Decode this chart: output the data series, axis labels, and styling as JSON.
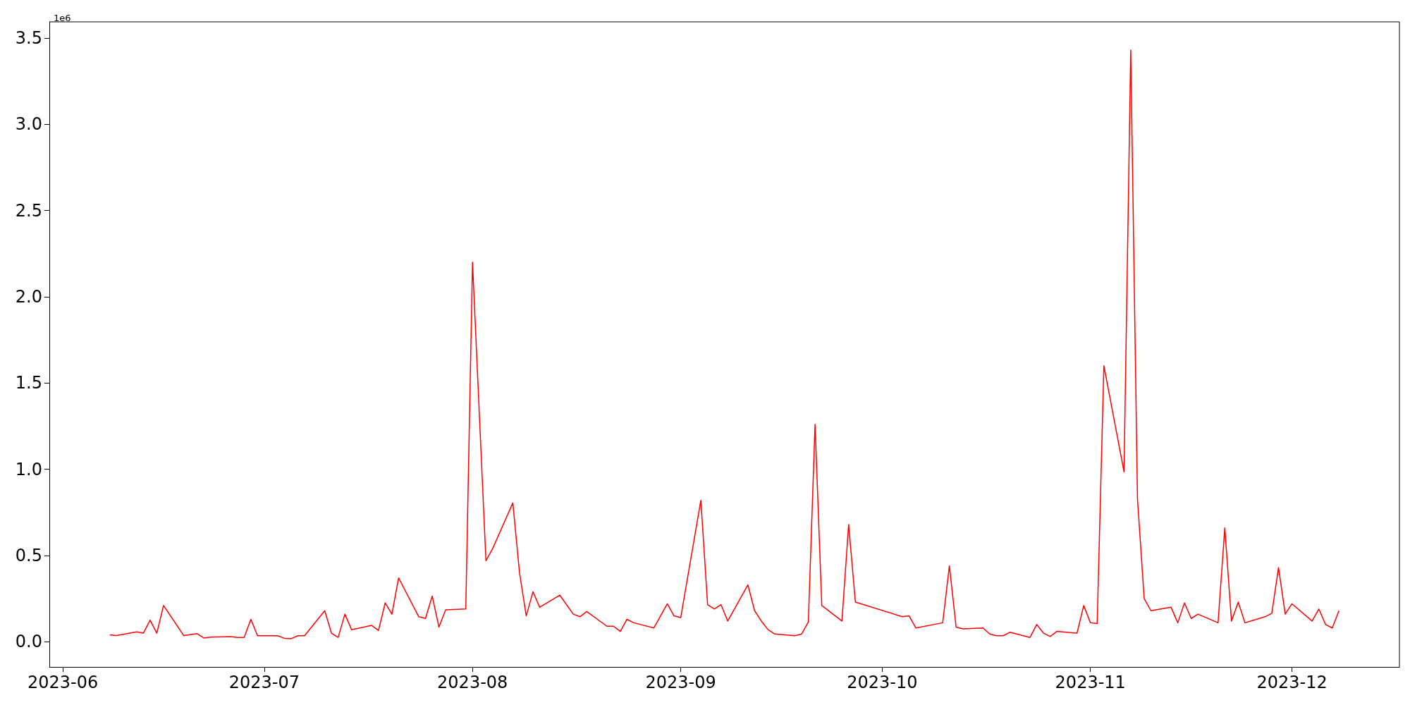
{
  "chart_data": {
    "type": "line",
    "annotations": [
      "1e6"
    ],
    "x": [
      "2023-06-08",
      "2023-06-09",
      "2023-06-12",
      "2023-06-13",
      "2023-06-14",
      "2023-06-15",
      "2023-06-16",
      "2023-06-19",
      "2023-06-21",
      "2023-06-22",
      "2023-06-23",
      "2023-06-26",
      "2023-06-27",
      "2023-06-28",
      "2023-06-29",
      "2023-06-30",
      "2023-07-03",
      "2023-07-04",
      "2023-07-05",
      "2023-07-06",
      "2023-07-07",
      "2023-07-10",
      "2023-07-11",
      "2023-07-12",
      "2023-07-13",
      "2023-07-14",
      "2023-07-17",
      "2023-07-18",
      "2023-07-19",
      "2023-07-20",
      "2023-07-21",
      "2023-07-24",
      "2023-07-25",
      "2023-07-26",
      "2023-07-27",
      "2023-07-28",
      "2023-07-31",
      "2023-08-01",
      "2023-08-03",
      "2023-08-04",
      "2023-08-07",
      "2023-08-08",
      "2023-08-09",
      "2023-08-10",
      "2023-08-11",
      "2023-08-14",
      "2023-08-16",
      "2023-08-17",
      "2023-08-18",
      "2023-08-21",
      "2023-08-22",
      "2023-08-23",
      "2023-08-24",
      "2023-08-25",
      "2023-08-28",
      "2023-08-29",
      "2023-08-30",
      "2023-08-31",
      "2023-09-01",
      "2023-09-04",
      "2023-09-05",
      "2023-09-06",
      "2023-09-07",
      "2023-09-08",
      "2023-09-11",
      "2023-09-12",
      "2023-09-13",
      "2023-09-14",
      "2023-09-15",
      "2023-09-18",
      "2023-09-19",
      "2023-09-20",
      "2023-09-21",
      "2023-09-22",
      "2023-09-25",
      "2023-09-26",
      "2023-09-27",
      "2023-10-04",
      "2023-10-05",
      "2023-10-06",
      "2023-10-10",
      "2023-10-11",
      "2023-10-12",
      "2023-10-13",
      "2023-10-16",
      "2023-10-17",
      "2023-10-18",
      "2023-10-19",
      "2023-10-20",
      "2023-10-23",
      "2023-10-24",
      "2023-10-25",
      "2023-10-26",
      "2023-10-27",
      "2023-10-30",
      "2023-10-31",
      "2023-11-01",
      "2023-11-02",
      "2023-11-03",
      "2023-11-06",
      "2023-11-07",
      "2023-11-08",
      "2023-11-09",
      "2023-11-10",
      "2023-11-13",
      "2023-11-14",
      "2023-11-15",
      "2023-11-16",
      "2023-11-17",
      "2023-11-20",
      "2023-11-21",
      "2023-11-22",
      "2023-11-23",
      "2023-11-24",
      "2023-11-27",
      "2023-11-28",
      "2023-11-29",
      "2023-11-30",
      "2023-12-01",
      "2023-12-04",
      "2023-12-05",
      "2023-12-06",
      "2023-12-07",
      "2023-12-08"
    ],
    "series": [
      {
        "color": "#ff0000",
        "values": [
          0.04,
          0.036,
          0.057,
          0.05,
          0.125,
          0.05,
          0.21,
          0.036,
          0.047,
          0.022,
          0.027,
          0.03,
          0.025,
          0.025,
          0.13,
          0.035,
          0.035,
          0.02,
          0.018,
          0.035,
          0.035,
          0.18,
          0.05,
          0.025,
          0.16,
          0.07,
          0.095,
          0.065,
          0.225,
          0.16,
          0.37,
          0.145,
          0.135,
          0.265,
          0.085,
          0.185,
          0.19,
          2.2,
          0.47,
          0.54,
          0.805,
          0.4,
          0.15,
          0.29,
          0.2,
          0.27,
          0.16,
          0.145,
          0.175,
          0.09,
          0.09,
          0.06,
          0.13,
          0.11,
          0.08,
          0.15,
          0.22,
          0.15,
          0.14,
          0.82,
          0.215,
          0.19,
          0.215,
          0.12,
          0.33,
          0.18,
          0.12,
          0.07,
          0.045,
          0.035,
          0.045,
          0.115,
          1.26,
          0.21,
          0.12,
          0.68,
          0.23,
          0.145,
          0.15,
          0.08,
          0.11,
          0.44,
          0.085,
          0.075,
          0.08,
          0.045,
          0.035,
          0.035,
          0.055,
          0.025,
          0.1,
          0.05,
          0.03,
          0.06,
          0.05,
          0.21,
          0.11,
          0.105,
          1.6,
          0.985,
          3.43,
          0.83,
          0.25,
          0.18,
          0.2,
          0.11,
          0.225,
          0.135,
          0.16,
          0.11,
          0.66,
          0.12,
          0.23,
          0.11,
          0.145,
          0.165,
          0.43,
          0.16,
          0.22,
          0.12,
          0.19,
          0.1,
          0.08,
          0.18
        ]
      }
    ],
    "xlim": [
      "2023-05-30",
      "2023-12-17"
    ],
    "xticks": [
      {
        "value": "2023-06-01",
        "label": "2023-06"
      },
      {
        "value": "2023-07-01",
        "label": "2023-07"
      },
      {
        "value": "2023-08-01",
        "label": "2023-08"
      },
      {
        "value": "2023-09-01",
        "label": "2023-09"
      },
      {
        "value": "2023-10-01",
        "label": "2023-10"
      },
      {
        "value": "2023-11-01",
        "label": "2023-11"
      },
      {
        "value": "2023-12-01",
        "label": "2023-12"
      }
    ],
    "ylim": [
      -0.146,
      3.594
    ],
    "yticks": [
      {
        "value": 0,
        "label": "0.0"
      },
      0.5,
      {
        "value": 1,
        "label": "1.0"
      },
      1.5,
      {
        "value": 2,
        "label": "2.0"
      },
      2.5,
      {
        "value": 3,
        "label": "3.0"
      },
      3.5
    ]
  }
}
